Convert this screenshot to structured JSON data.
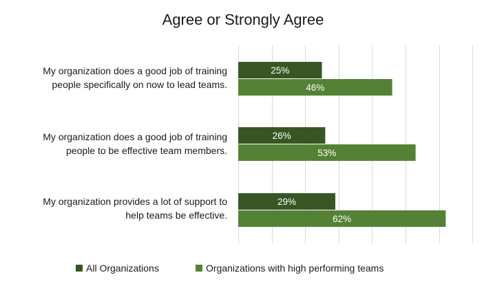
{
  "chart_data": {
    "type": "bar",
    "orientation": "horizontal",
    "title": "Agree or Strongly Agree",
    "categories": [
      [
        "My organization does a good job of training",
        "people specifically on now to lead teams."
      ],
      [
        "My organization does a good job of training",
        "people to be effective team members."
      ],
      [
        "My organization provides a lot of support to",
        "help teams be effective."
      ]
    ],
    "series": [
      {
        "name": "All Organizations",
        "values": [
          25,
          26,
          29
        ],
        "labels": [
          "25%",
          "26%",
          "29%"
        ],
        "color": "#375623"
      },
      {
        "name": "Organizations with high performing teams",
        "values": [
          46,
          53,
          62
        ],
        "labels": [
          "46%",
          "53%",
          "62%"
        ],
        "color": "#548235"
      }
    ],
    "xlim": [
      0,
      70
    ],
    "grid": true,
    "legend_position": "bottom"
  }
}
